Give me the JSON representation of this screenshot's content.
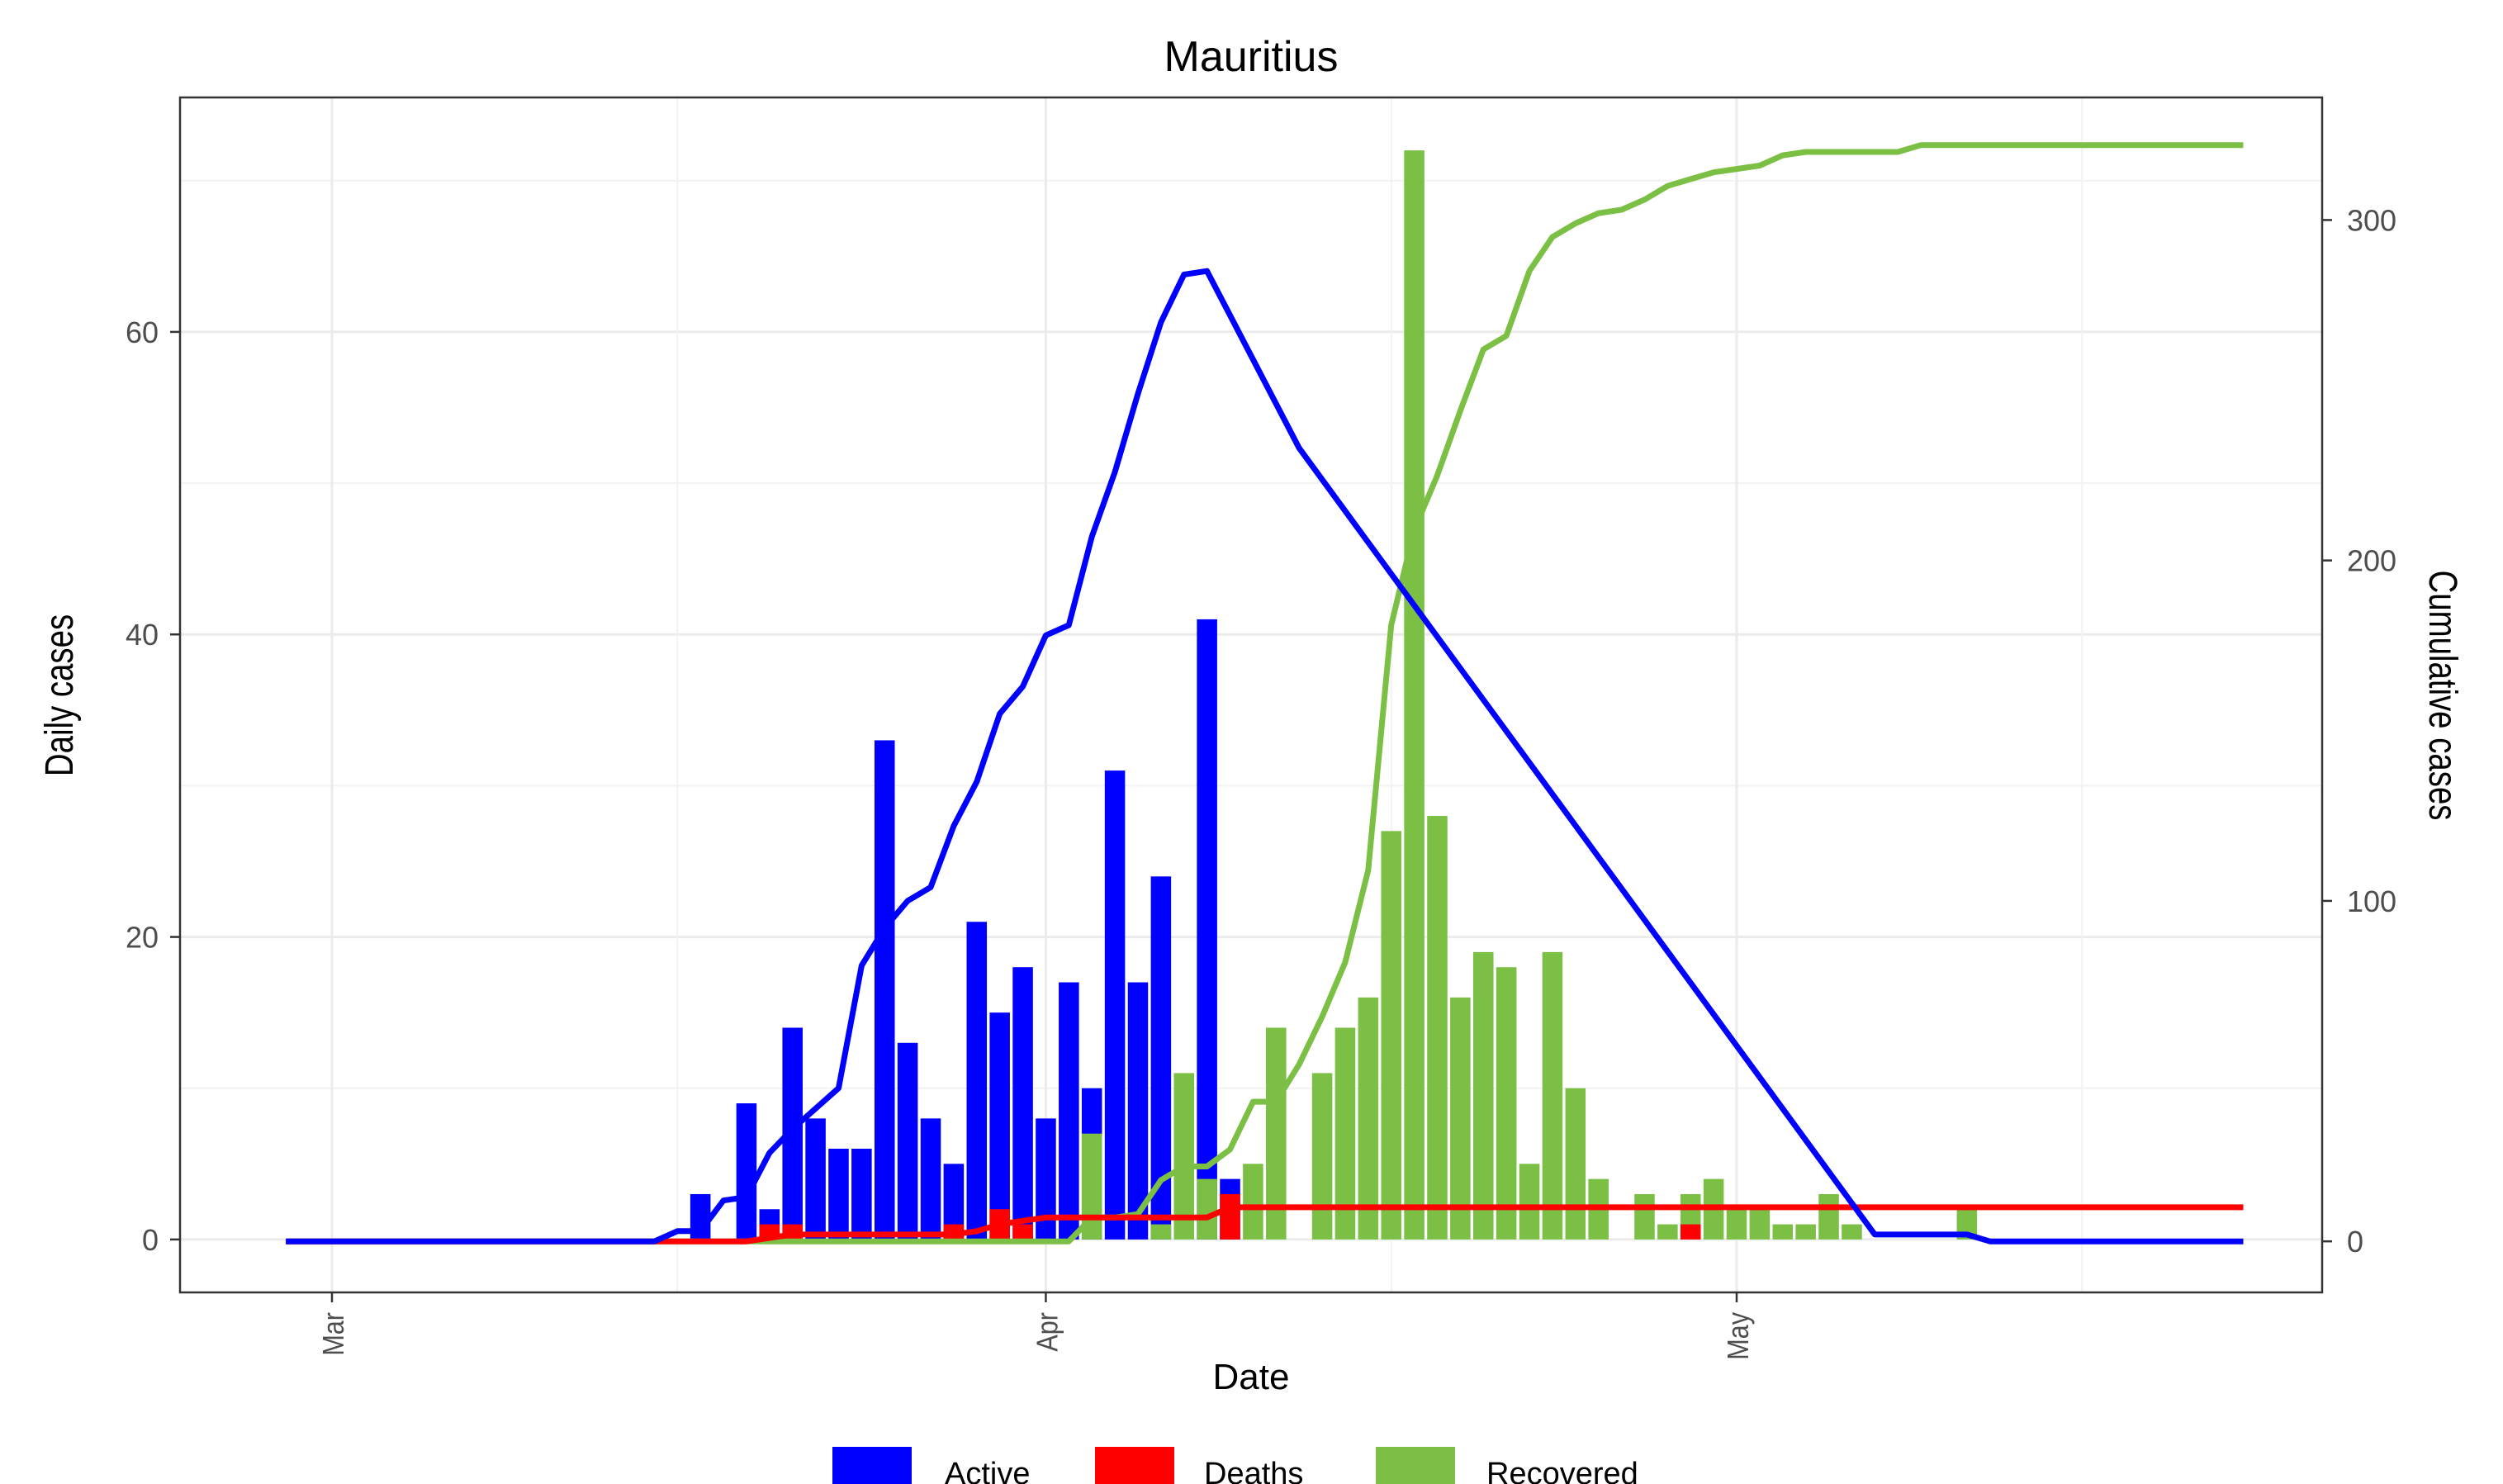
{
  "chart_data": {
    "type": "bar",
    "title": "Mauritius",
    "xlabel": "Date",
    "ylabel": "Daily cases",
    "y2label": "Cumulative cases",
    "ylim": [
      -3.5,
      75.5
    ],
    "y2lim": [
      -15,
      336
    ],
    "y_ticks": [
      0,
      20,
      40,
      60
    ],
    "y2_ticks": [
      0,
      100,
      200,
      300
    ],
    "x_ticks": [
      {
        "label": "Mar",
        "date": "2020-03-01"
      },
      {
        "label": "Apr",
        "date": "2020-04-01"
      },
      {
        "label": "May",
        "date": "2020-05-01"
      }
    ],
    "grid": true,
    "legend_position": "bottom",
    "colors": {
      "Active": "#0000ff",
      "Deaths": "#ff0000",
      "Recovered": "#7bbf45"
    },
    "dates": [
      "2020-03-15",
      "2020-03-16",
      "2020-03-17",
      "2020-03-18",
      "2020-03-19",
      "2020-03-20",
      "2020-03-21",
      "2020-03-22",
      "2020-03-23",
      "2020-03-24",
      "2020-03-25",
      "2020-03-26",
      "2020-03-27",
      "2020-03-28",
      "2020-03-29",
      "2020-03-30",
      "2020-03-31",
      "2020-04-01",
      "2020-04-02",
      "2020-04-03",
      "2020-04-04",
      "2020-04-05",
      "2020-04-06",
      "2020-04-07",
      "2020-04-08",
      "2020-04-09",
      "2020-04-10",
      "2020-04-11",
      "2020-04-12",
      "2020-04-13",
      "2020-04-14",
      "2020-04-15",
      "2020-04-16",
      "2020-04-17",
      "2020-04-18",
      "2020-04-19",
      "2020-04-20",
      "2020-04-21",
      "2020-04-22",
      "2020-04-23",
      "2020-04-24",
      "2020-04-25",
      "2020-04-26",
      "2020-04-27",
      "2020-04-28",
      "2020-04-29",
      "2020-04-30",
      "2020-05-01",
      "2020-05-02",
      "2020-05-03",
      "2020-05-04",
      "2020-05-05",
      "2020-05-06",
      "2020-05-07",
      "2020-05-08",
      "2020-05-09",
      "2020-05-10",
      "2020-05-11",
      "2020-05-12",
      "2020-05-13"
    ],
    "daily_series": [
      {
        "name": "Active",
        "values": [
          0,
          0,
          3,
          0,
          9,
          2,
          14,
          8,
          6,
          6,
          33,
          13,
          8,
          5,
          21,
          15,
          18,
          8,
          17,
          10,
          31,
          17,
          24,
          0,
          41,
          4,
          0,
          0,
          0,
          0,
          0,
          0,
          0,
          0,
          0,
          0,
          0,
          0,
          0,
          0,
          0,
          0,
          0,
          0,
          0,
          0,
          0,
          0,
          0,
          0,
          0,
          0,
          0,
          0,
          0,
          0,
          0,
          0,
          0,
          0
        ]
      },
      {
        "name": "Deaths",
        "values": [
          0,
          0,
          0,
          0,
          0,
          1,
          1,
          0,
          0,
          0,
          0,
          0,
          0,
          1,
          0,
          2,
          1,
          0,
          0,
          0,
          0,
          0,
          0,
          0,
          0,
          3,
          0,
          0,
          0,
          0,
          0,
          0,
          0,
          0,
          0,
          0,
          0,
          0,
          0,
          0,
          0,
          0,
          0,
          0,
          0,
          1,
          0,
          0,
          0,
          0,
          0,
          0,
          0,
          0,
          0,
          0,
          0,
          0,
          0,
          0
        ]
      },
      {
        "name": "Recovered",
        "values": [
          0,
          0,
          0,
          0,
          0,
          0,
          0,
          0,
          0,
          0,
          0,
          0,
          0,
          0,
          0,
          0,
          0,
          0,
          0,
          7,
          0,
          0,
          1,
          11,
          4,
          0,
          5,
          14,
          0,
          11,
          14,
          16,
          27,
          72,
          28,
          16,
          19,
          18,
          5,
          19,
          10,
          4,
          0,
          3,
          1,
          3,
          4,
          2,
          2,
          1,
          1,
          3,
          1,
          0,
          0,
          0,
          0,
          2,
          0,
          0
        ]
      }
    ],
    "cumulative_series": [
      {
        "name": "Active",
        "x": [
          "2020-02-28",
          "2020-03-15",
          "2020-03-16",
          "2020-03-17",
          "2020-03-18",
          "2020-03-19",
          "2020-03-20",
          "2020-03-21",
          "2020-03-22",
          "2020-03-23",
          "2020-03-24",
          "2020-03-25",
          "2020-03-26",
          "2020-03-27",
          "2020-03-28",
          "2020-03-29",
          "2020-03-30",
          "2020-03-31",
          "2020-04-01",
          "2020-04-02",
          "2020-04-03",
          "2020-04-04",
          "2020-04-05",
          "2020-04-06",
          "2020-04-07",
          "2020-04-08",
          "2020-04-09",
          "2020-04-12",
          "2020-05-07",
          "2020-05-10",
          "2020-05-11",
          "2020-05-12",
          "2020-05-23"
        ],
        "values": [
          0,
          0,
          3,
          3,
          12,
          13,
          26,
          33,
          39,
          45,
          81,
          92,
          100,
          104,
          122,
          135,
          155,
          163,
          178,
          181,
          207,
          226,
          249,
          270,
          284,
          285,
          272,
          233,
          2,
          2,
          2,
          0,
          0
        ]
      },
      {
        "name": "Deaths",
        "x": [
          "2020-02-28",
          "2020-03-19",
          "2020-03-20",
          "2020-03-21",
          "2020-03-28",
          "2020-03-29",
          "2020-03-30",
          "2020-03-31",
          "2020-04-01",
          "2020-04-02",
          "2020-04-03",
          "2020-04-08",
          "2020-04-09",
          "2020-04-27",
          "2020-04-28",
          "2020-05-23"
        ],
        "values": [
          0,
          0,
          1,
          2,
          2,
          3,
          5,
          6,
          7,
          7,
          7,
          7,
          10,
          10,
          10,
          10
        ]
      },
      {
        "name": "Recovered",
        "x": [
          "2020-02-28",
          "2020-04-02",
          "2020-04-03",
          "2020-04-04",
          "2020-04-05",
          "2020-04-06",
          "2020-04-07",
          "2020-04-08",
          "2020-04-09",
          "2020-04-10",
          "2020-04-11",
          "2020-04-12",
          "2020-04-13",
          "2020-04-14",
          "2020-04-15",
          "2020-04-16",
          "2020-04-17",
          "2020-04-18",
          "2020-04-19",
          "2020-04-20",
          "2020-04-21",
          "2020-04-22",
          "2020-04-23",
          "2020-04-24",
          "2020-04-25",
          "2020-04-26",
          "2020-04-27",
          "2020-04-28",
          "2020-04-29",
          "2020-04-30",
          "2020-05-01",
          "2020-05-02",
          "2020-05-03",
          "2020-05-04",
          "2020-05-05",
          "2020-05-06",
          "2020-05-08",
          "2020-05-09",
          "2020-05-23"
        ],
        "values": [
          0,
          0,
          7,
          7,
          8,
          18,
          22,
          22,
          27,
          41,
          41,
          52,
          66,
          82,
          109,
          181,
          209,
          225,
          244,
          262,
          266,
          285,
          295,
          299,
          302,
          303,
          306,
          310,
          312,
          314,
          315,
          316,
          319,
          320,
          320,
          320,
          320,
          322,
          322
        ]
      }
    ]
  }
}
